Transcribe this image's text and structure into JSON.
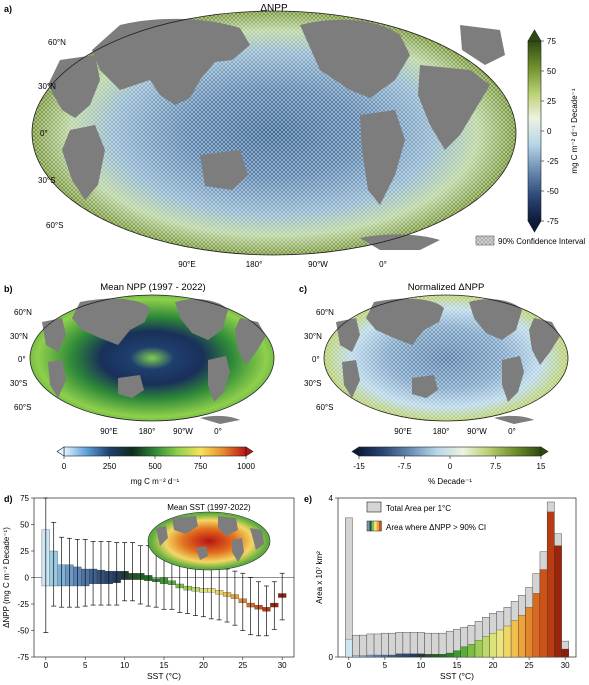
{
  "panel_a": {
    "letter": "a)",
    "title": "ΔNPP",
    "lat_labels": [
      "60°N",
      "30°N",
      "0°",
      "30°S",
      "60°S"
    ],
    "lon_labels": [
      "90°E",
      "180°",
      "90°W",
      "0°"
    ],
    "colorbar": {
      "ticks": [
        "75",
        "50",
        "25",
        "0",
        "-25",
        "-50",
        "-75"
      ],
      "unit_label": "mg C m⁻² d⁻¹ Decade⁻¹",
      "colors": [
        "#2f4a10",
        "#6f8e2c",
        "#b7cf70",
        "#eef2e0",
        "#b8d7ea",
        "#6c8fb4",
        "#2e4a78",
        "#0c1a3a"
      ]
    },
    "legend_label": "90% Confidence Interval"
  },
  "panel_b": {
    "letter": "b)",
    "title": "Mean NPP (1997 - 2022)",
    "lat_labels": [
      "60°N",
      "30°N",
      "0°",
      "30°S",
      "60°S"
    ],
    "lon_labels": [
      "90°E",
      "180°",
      "90°W",
      "0°"
    ],
    "colorbar": {
      "ticks": [
        "0",
        "250",
        "500",
        "750",
        "1000"
      ],
      "unit_label": "mg C m⁻² d⁻¹",
      "colors": [
        "#e6f4ff",
        "#5aa0d8",
        "#1f3f6e",
        "#0f2a1c",
        "#2f8a38",
        "#8fd04c",
        "#f7e35a",
        "#e88a2d",
        "#b81414"
      ]
    }
  },
  "panel_c": {
    "letter": "c)",
    "title": "Normalized ΔNPP",
    "lat_labels": [
      "60°N",
      "30°N",
      "0°",
      "30°S",
      "60°S"
    ],
    "lon_labels": [
      "90°E",
      "180°",
      "90°W",
      "0°"
    ],
    "colorbar": {
      "ticks": [
        "-15",
        "-7.5",
        "0",
        "7.5",
        "15"
      ],
      "unit_label": "% Decade⁻¹",
      "colors": [
        "#0c1a3a",
        "#2e4a78",
        "#6c8fb4",
        "#b8d7ea",
        "#eef2e0",
        "#b7cf70",
        "#6f8e2c",
        "#2f4a10"
      ]
    }
  },
  "panel_d": {
    "letter": "d)",
    "inset_title": "Mean SST (1997-2022)"
  },
  "panel_e": {
    "letter": "e)",
    "legend_total": "Total Area per 1°C",
    "legend_ci": "Area where ΔNPP > 90% CI"
  },
  "chart_data": [
    {
      "id": "panel_d",
      "type": "bar",
      "xlabel": "SST (°C)",
      "ylabel": "ΔNPP (mg C m⁻² Decade⁻¹)",
      "xlim": [
        -1.5,
        31.5
      ],
      "ylim": [
        -75,
        75
      ],
      "x_ticks": [
        "0",
        "5",
        "10",
        "15",
        "20",
        "25",
        "30"
      ],
      "y_ticks": [
        "75",
        "50",
        "25",
        "0",
        "-25",
        "-50",
        "-75"
      ],
      "x": [
        0,
        1,
        2,
        3,
        4,
        5,
        6,
        7,
        8,
        9,
        10,
        11,
        12,
        13,
        14,
        15,
        16,
        17,
        18,
        19,
        20,
        21,
        22,
        23,
        24,
        25,
        26,
        27,
        28,
        29,
        30
      ],
      "values": [
        45,
        25,
        12,
        12,
        10,
        8,
        8,
        7,
        6,
        6,
        6,
        4,
        4,
        2,
        -1,
        -2,
        -5,
        -8,
        -10,
        -11,
        -12,
        -12,
        -14,
        -16,
        -18,
        -22,
        -26,
        -28,
        -30,
        -26,
        -17
      ],
      "mean_low": [
        -8,
        -8,
        -8,
        -8,
        -8,
        -8,
        -6,
        -6,
        -6,
        -5,
        -2,
        -2,
        -2,
        -3,
        -4,
        -4,
        -5,
        -8,
        -10,
        -11,
        -12,
        -12,
        -14,
        -16,
        -18,
        -22,
        -26,
        -28,
        -30,
        -26,
        -17
      ],
      "err_low": [
        -52,
        -27,
        -28,
        -28,
        -28,
        -27,
        -26,
        -26,
        -26,
        -26,
        -22,
        -22,
        -25,
        -27,
        -28,
        -30,
        -30,
        -33,
        -34,
        -36,
        -37,
        -39,
        -40,
        -42,
        -45,
        -50,
        -54,
        -55,
        -55,
        -49,
        -40
      ],
      "err_high": [
        75,
        52,
        38,
        37,
        36,
        36,
        34,
        34,
        34,
        33,
        33,
        33,
        30,
        30,
        28,
        25,
        20,
        19,
        17,
        16,
        14,
        12,
        10,
        8,
        6,
        4,
        0,
        -4,
        -8,
        -4,
        4
      ],
      "bar_colors": [
        "#cbe5f2",
        "#9ccbe4",
        "#7fb1d6",
        "#6c9ac6",
        "#5d84b6",
        "#4f73a4",
        "#3f6190",
        "#344f7a",
        "#2b4470",
        "#243b5e",
        "#1f3a33",
        "#2a4d2b",
        "#215c22",
        "#1f6d21",
        "#2a8427",
        "#3d9930",
        "#5aac3a",
        "#7dbd45",
        "#9ecd56",
        "#bed96a",
        "#dbe47a",
        "#ece47f",
        "#f2d765",
        "#f0c04d",
        "#eca43a",
        "#e3852a",
        "#da6920",
        "#cd5218",
        "#b83b12",
        "#9a250b",
        "#8e1e0a"
      ]
    },
    {
      "id": "panel_e",
      "type": "bar",
      "xlabel": "SST (°C)",
      "ylabel": "Area x 10⁷ km²",
      "xlim": [
        -1.5,
        31.5
      ],
      "ylim": [
        0,
        4
      ],
      "x_ticks": [
        "0",
        "5",
        "10",
        "15",
        "20",
        "25",
        "30"
      ],
      "y_ticks": [
        "4",
        "0"
      ],
      "x": [
        0,
        1,
        2,
        3,
        4,
        5,
        6,
        7,
        8,
        9,
        10,
        11,
        12,
        13,
        14,
        15,
        16,
        17,
        18,
        19,
        20,
        21,
        22,
        23,
        24,
        25,
        26,
        27,
        28,
        29,
        30
      ],
      "series": [
        {
          "name": "Total Area per 1°C",
          "values": [
            3.5,
            0.55,
            0.55,
            0.58,
            0.58,
            0.6,
            0.6,
            0.62,
            0.62,
            0.62,
            0.62,
            0.6,
            0.6,
            0.6,
            0.65,
            0.7,
            0.75,
            0.8,
            0.9,
            1.0,
            1.1,
            1.15,
            1.25,
            1.4,
            1.55,
            1.75,
            2.1,
            2.65,
            3.9,
            3.1,
            0.4
          ]
        },
        {
          "name": "Area where ΔNPP > 90% CI",
          "values": [
            0.45,
            0.03,
            0.03,
            0.05,
            0.05,
            0.05,
            0.05,
            0.08,
            0.08,
            0.08,
            0.08,
            0.07,
            0.07,
            0.07,
            0.1,
            0.16,
            0.26,
            0.32,
            0.42,
            0.52,
            0.6,
            0.68,
            0.78,
            0.92,
            1.05,
            1.25,
            1.6,
            2.2,
            3.65,
            2.8,
            0.2
          ]
        }
      ]
    }
  ]
}
